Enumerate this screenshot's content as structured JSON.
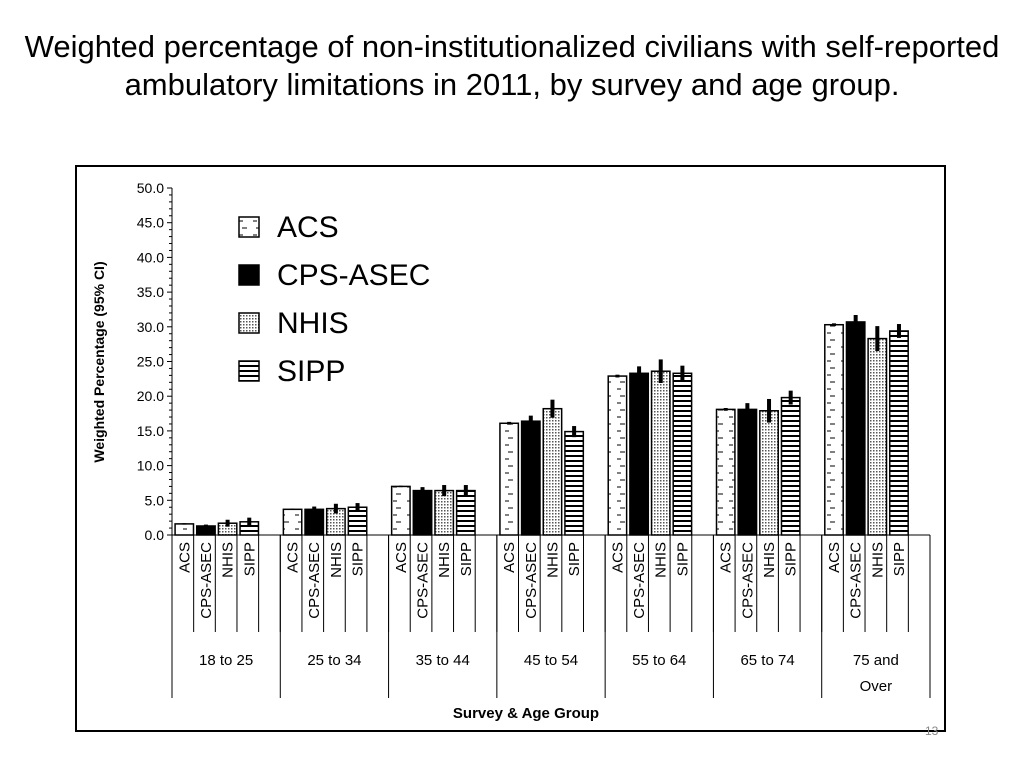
{
  "slide": {
    "title": "Weighted percentage of non-institutionalized civilians with self-reported ambulatory limitations in 2011, by survey and age group.",
    "page_number": "13"
  },
  "chart_data": {
    "type": "bar",
    "title": "",
    "xlabel": "Survey & Age Group",
    "ylabel": "Weighted Percentage (95% CI)",
    "ylim": [
      0,
      50
    ],
    "yticks": [
      "0.0",
      "5.0",
      "10.0",
      "15.0",
      "20.0",
      "25.0",
      "30.0",
      "35.0",
      "40.0",
      "45.0",
      "50.0"
    ],
    "categories": [
      "18 to 25",
      "25 to 34",
      "35 to 44",
      "45 to 54",
      "55 to 64",
      "65 to 74",
      "75 and Over"
    ],
    "legend_position": "top-left",
    "grid": false,
    "series": [
      {
        "name": "ACS",
        "pattern": "dashes",
        "values": [
          1.6,
          3.7,
          7.0,
          16.1,
          22.9,
          18.1,
          30.3
        ],
        "ci": [
          0.1,
          0.1,
          0.1,
          0.2,
          0.2,
          0.2,
          0.2
        ]
      },
      {
        "name": "CPS-ASEC",
        "pattern": "solid",
        "values": [
          1.3,
          3.7,
          6.4,
          16.4,
          23.3,
          18.1,
          30.7
        ],
        "ci": [
          0.2,
          0.4,
          0.5,
          0.8,
          1.0,
          0.9,
          1.0
        ]
      },
      {
        "name": "NHIS",
        "pattern": "dots",
        "values": [
          1.7,
          3.8,
          6.4,
          18.2,
          23.6,
          17.9,
          28.3
        ],
        "ci": [
          0.5,
          0.7,
          0.8,
          1.3,
          1.7,
          1.7,
          1.8
        ]
      },
      {
        "name": "SIPP",
        "pattern": "hlines",
        "values": [
          1.9,
          4.0,
          6.4,
          14.9,
          23.3,
          19.8,
          29.4
        ],
        "ci": [
          0.6,
          0.6,
          0.8,
          0.8,
          1.1,
          1.0,
          1.0
        ]
      }
    ]
  }
}
